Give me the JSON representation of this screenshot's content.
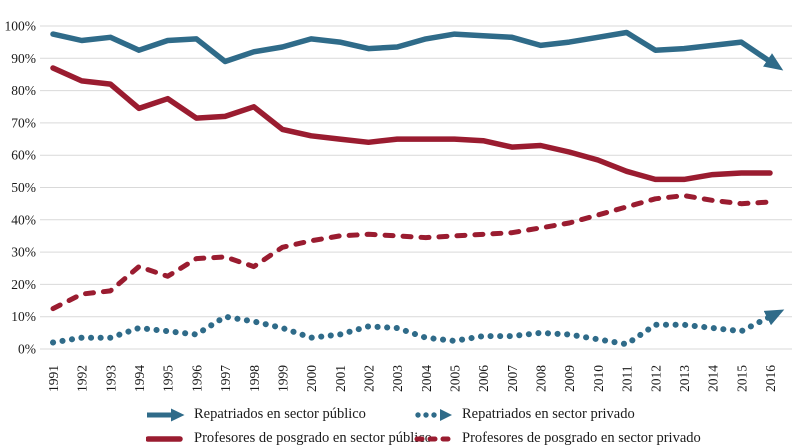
{
  "chart_data": {
    "type": "line",
    "x": [
      "1991",
      "1992",
      "1993",
      "1994",
      "1995",
      "1996",
      "1997",
      "1998",
      "1999",
      "2000",
      "2001",
      "2002",
      "2003",
      "2004",
      "2005",
      "2006",
      "2007",
      "2008",
      "2009",
      "2010",
      "2011",
      "2012",
      "2013",
      "2014",
      "2015",
      "2016"
    ],
    "ytick_labels": [
      "0%",
      "10%",
      "20%",
      "30%",
      "40%",
      "50%",
      "60%",
      "70%",
      "80%",
      "90%",
      "100%"
    ],
    "ylim": [
      0,
      100
    ],
    "grid": true,
    "legend_position": "bottom-two-columns",
    "series": [
      {
        "name": "Repatriados en sector público",
        "color": "#2f6b89",
        "style": "solid",
        "arrow_end": true,
        "values": [
          97.5,
          95.5,
          96.5,
          92.5,
          95.5,
          96,
          89,
          92,
          93.5,
          96,
          95,
          93,
          93.5,
          96,
          97.5,
          97,
          96.5,
          94,
          95,
          96.5,
          98,
          92.5,
          93,
          94,
          95,
          89
        ]
      },
      {
        "name": "Repatriados en sector privado",
        "color": "#2f6b89",
        "style": "dotted",
        "arrow_end": true,
        "values": [
          2,
          3.5,
          3.5,
          6.5,
          5.5,
          4.5,
          10,
          8.5,
          6.5,
          3.5,
          4.5,
          7,
          6.5,
          3.5,
          2.5,
          4,
          4,
          5,
          4.5,
          3,
          1.5,
          7.5,
          7.5,
          6.5,
          5.5,
          10
        ]
      },
      {
        "name": "Profesores de posgrado en sector público",
        "color": "#9a1c30",
        "style": "solid",
        "arrow_end": false,
        "values": [
          87,
          83,
          82,
          74.5,
          77.5,
          71.5,
          72,
          75,
          68,
          66,
          65,
          64,
          65,
          65,
          65,
          64.5,
          62.5,
          63,
          61,
          58.5,
          55,
          52.5,
          52.5,
          54,
          54.5,
          54.5
        ]
      },
      {
        "name": "Profesores de posgrado en sector privado",
        "color": "#9a1c30",
        "style": "dashed",
        "arrow_end": false,
        "values": [
          12.5,
          17,
          18,
          25.5,
          22.5,
          28,
          28.5,
          25.5,
          31.5,
          33.5,
          35,
          35.5,
          35,
          34.5,
          35,
          35.5,
          36,
          37.5,
          39,
          41.5,
          44,
          46.5,
          47.5,
          46,
          45,
          45.5
        ]
      }
    ]
  }
}
